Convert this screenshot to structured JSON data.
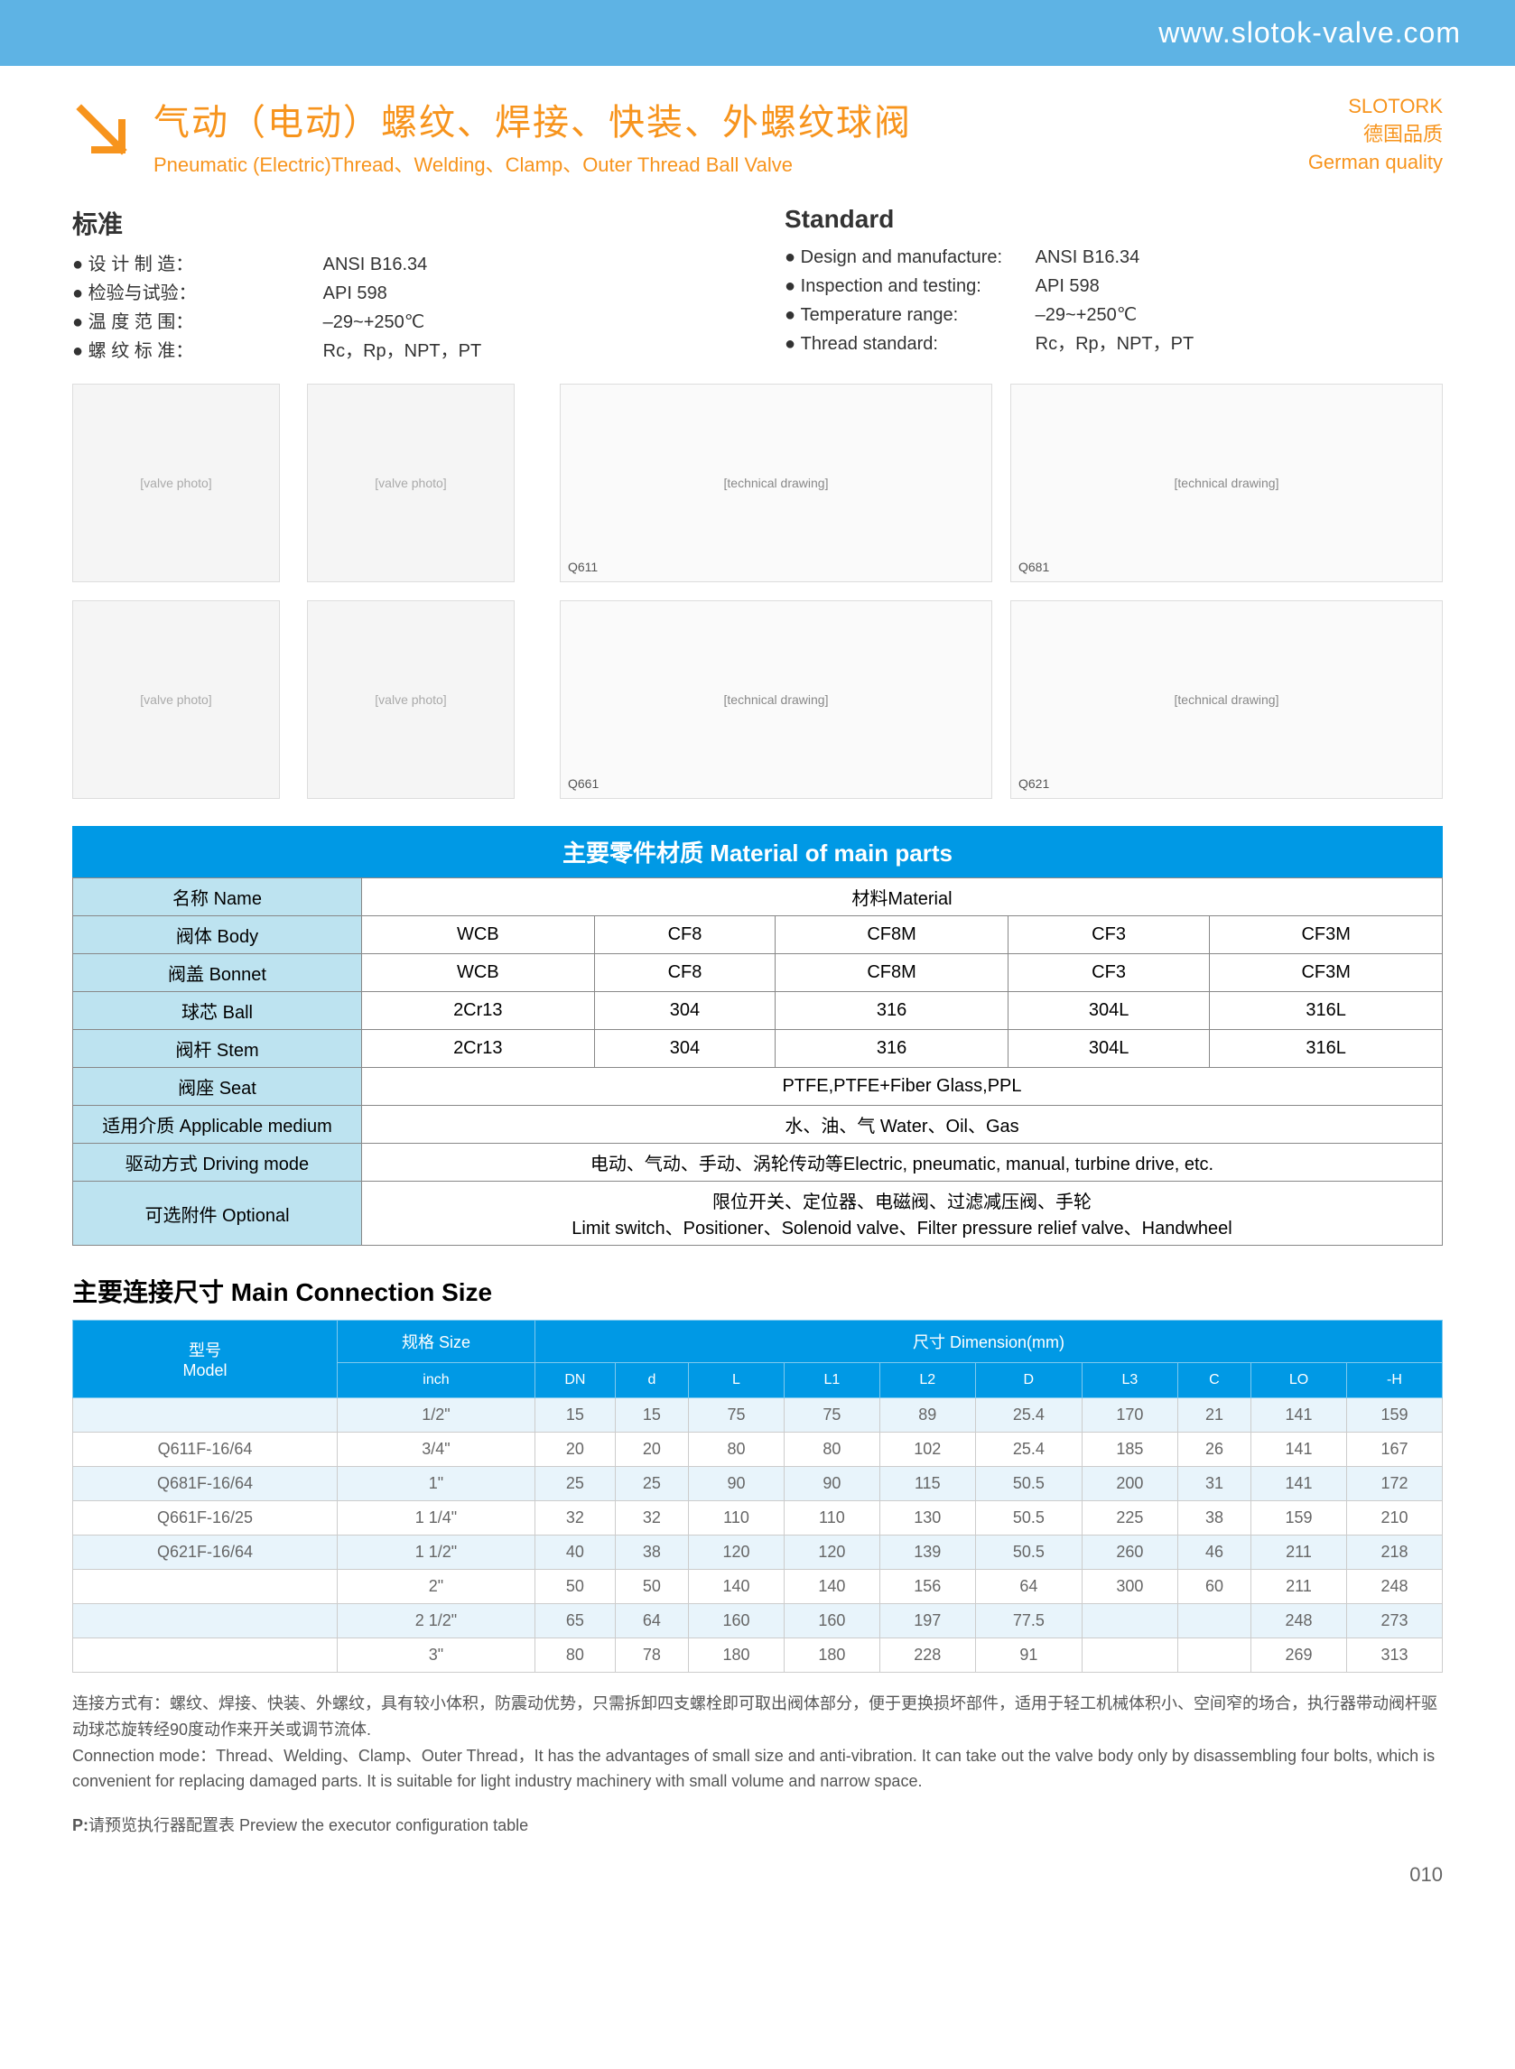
{
  "header": {
    "url": "www.slotok-valve.com"
  },
  "brand": {
    "name": "SLOTORK",
    "tagline_cn": "德国品质",
    "tagline_en": "German quality"
  },
  "title": {
    "cn": "气动（电动）螺纹、焊接、快装、外螺纹球阀",
    "en": "Pneumatic (Electric)Thread、Welding、Clamp、Outer Thread Ball Valve"
  },
  "arrow_color": "#f7941d",
  "standards_cn": {
    "heading": "标准",
    "items": [
      {
        "label": "设 计 制 造：",
        "value": "ANSI B16.34"
      },
      {
        "label": "检验与试验：",
        "value": "API 598"
      },
      {
        "label": "温 度 范 围：",
        "value": "–29~+250℃"
      },
      {
        "label": "螺 纹 标 准：",
        "value": "Rc，Rp，NPT，PT"
      }
    ]
  },
  "standards_en": {
    "heading": "Standard",
    "items": [
      {
        "label": "Design and manufacture:",
        "value": "ANSI B16.34"
      },
      {
        "label": "Inspection and testing:",
        "value": "API 598"
      },
      {
        "label": "Temperature range:",
        "value": "–29~+250℃"
      },
      {
        "label": "Thread standard:",
        "value": "Rc，Rp，NPT，PT"
      }
    ]
  },
  "diagrams": [
    "Q611",
    "Q681",
    "Q661",
    "Q621"
  ],
  "materials": {
    "heading": "主要零件材质 Material of main parts",
    "header_row": {
      "name": "名称 Name",
      "material": "材料Material"
    },
    "rows": [
      {
        "label": "阀体 Body",
        "cells": [
          "WCB",
          "CF8",
          "CF8M",
          "CF3",
          "CF3M"
        ]
      },
      {
        "label": "阀盖 Bonnet",
        "cells": [
          "WCB",
          "CF8",
          "CF8M",
          "CF3",
          "CF3M"
        ]
      },
      {
        "label": "球芯 Ball",
        "cells": [
          "2Cr13",
          "304",
          "316",
          "304L",
          "316L"
        ]
      },
      {
        "label": "阀杆 Stem",
        "cells": [
          "2Cr13",
          "304",
          "316",
          "304L",
          "316L"
        ]
      },
      {
        "label": "阀座 Seat",
        "span": "PTFE,PTFE+Fiber Glass,PPL"
      },
      {
        "label": "适用介质 Applicable medium",
        "span": "水、油、气  Water、Oil、Gas"
      },
      {
        "label": "驱动方式 Driving mode",
        "span": "电动、气动、手动、涡轮传动等Electric, pneumatic, manual, turbine drive, etc."
      },
      {
        "label": "可选附件 Optional",
        "span": "限位开关、定位器、电磁阀、过滤减压阀、手轮\nLimit switch、Positioner、Solenoid valve、Filter pressure relief valve、Handwheel"
      }
    ]
  },
  "dimensions": {
    "heading": "主要连接尺寸 Main Connection Size",
    "header": {
      "model": "型号\nModel",
      "size": "规格 Size",
      "dim": "尺寸 Dimension(mm)",
      "sub": [
        "inch",
        "DN",
        "d",
        "L",
        "L1",
        "L2",
        "D",
        "L3",
        "C",
        "LO",
        "-H"
      ]
    },
    "rows": [
      {
        "alt": true,
        "model": "",
        "cells": [
          "1/2\"",
          "15",
          "15",
          "75",
          "75",
          "89",
          "25.4",
          "170",
          "21",
          "141",
          "159"
        ]
      },
      {
        "alt": false,
        "model": "Q611F-16/64",
        "cells": [
          "3/4\"",
          "20",
          "20",
          "80",
          "80",
          "102",
          "25.4",
          "185",
          "26",
          "141",
          "167"
        ]
      },
      {
        "alt": true,
        "model": "Q681F-16/64",
        "cells": [
          "1\"",
          "25",
          "25",
          "90",
          "90",
          "115",
          "50.5",
          "200",
          "31",
          "141",
          "172"
        ]
      },
      {
        "alt": false,
        "model": "Q661F-16/25",
        "cells": [
          "1 1/4\"",
          "32",
          "32",
          "110",
          "110",
          "130",
          "50.5",
          "225",
          "38",
          "159",
          "210"
        ]
      },
      {
        "alt": true,
        "model": "Q621F-16/64",
        "cells": [
          "1 1/2\"",
          "40",
          "38",
          "120",
          "120",
          "139",
          "50.5",
          "260",
          "46",
          "211",
          "218"
        ]
      },
      {
        "alt": false,
        "model": "",
        "cells": [
          "2\"",
          "50",
          "50",
          "140",
          "140",
          "156",
          "64",
          "300",
          "60",
          "211",
          "248"
        ]
      },
      {
        "alt": true,
        "model": "",
        "cells": [
          "2 1/2\"",
          "65",
          "64",
          "160",
          "160",
          "197",
          "77.5",
          "",
          "",
          "248",
          "273"
        ]
      },
      {
        "alt": false,
        "model": "",
        "cells": [
          "3\"",
          "80",
          "78",
          "180",
          "180",
          "228",
          "91",
          "",
          "",
          "269",
          "313"
        ]
      }
    ]
  },
  "footer": {
    "note_cn": "连接方式有：螺纹、焊接、快装、外螺纹，具有较小体积，防震动优势，只需拆卸四支螺栓即可取出阀体部分，便于更换损坏部件，适用于轻工机械体积小、空间窄的场合，执行器带动阀杆驱动球芯旋转经90度动作来开关或调节流体.",
    "note_en": "Connection mode：Thread、Welding、Clamp、Outer Thread，It has the advantages of small size and anti-vibration. It can take out the valve body only by disassembling four bolts, which is convenient for replacing damaged parts. It is suitable for light industry machinery with small volume and narrow space.",
    "preview": "P:请预览执行器配置表  Preview the executor configuration table",
    "page": "010"
  },
  "colors": {
    "header_bg": "#5eb3e4",
    "accent": "#f7941d",
    "section_bg": "#0099e5",
    "alt_row": "#e8f4fb",
    "label_bg": "#bde3f0"
  }
}
